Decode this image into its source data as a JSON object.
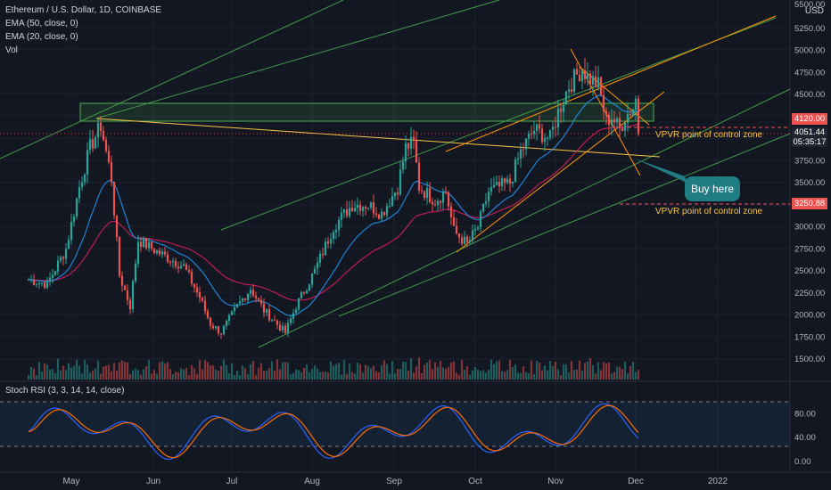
{
  "header": {
    "symbol_line": "Ethereum / U.S. Dollar, 1D, COINBASE",
    "ema50_label": "EMA (50, close, 0)",
    "ema20_label": "EMA (20, close, 0)",
    "vol_label": "Vol",
    "currency": "USD"
  },
  "annotations": {
    "buy_label": "Buy here",
    "vpvr_upper": "VPVR point of control zone",
    "vpvr_lower": "VPVR point of control zone"
  },
  "price_tags": {
    "top": "4120.00",
    "current": "4051.44",
    "countdown": "05:35:17",
    "lower": "3250.88"
  },
  "stoch": {
    "label": "Stoch RSI (3, 3, 14, 14, close)"
  },
  "chart_data": {
    "type": "candlestick",
    "price_axis_ticks": [
      "5500.00",
      "5250.00",
      "5000.00",
      "4750.00",
      "4500.00",
      "4250.00",
      "4000.00",
      "3750.00",
      "3500.00",
      "3250.00",
      "3000.00",
      "2750.00",
      "2500.00",
      "2250.00",
      "2000.00",
      "1750.00",
      "1500.00"
    ],
    "stoch_axis_ticks": [
      "80.00",
      "40.00",
      "0.00"
    ],
    "time_axis_ticks": [
      "May",
      "Jun",
      "Jul",
      "Aug",
      "Sep",
      "Oct",
      "Nov",
      "Dec",
      "2022"
    ],
    "close_series": [
      {
        "date": "2021-04-15",
        "close": 2400
      },
      {
        "date": "2021-04-22",
        "close": 2350
      },
      {
        "date": "2021-04-29",
        "close": 2750
      },
      {
        "date": "2021-05-04",
        "close": 3450
      },
      {
        "date": "2021-05-08",
        "close": 3900
      },
      {
        "date": "2021-05-12",
        "close": 4150
      },
      {
        "date": "2021-05-16",
        "close": 3550
      },
      {
        "date": "2021-05-19",
        "close": 2450
      },
      {
        "date": "2021-05-23",
        "close": 2100
      },
      {
        "date": "2021-05-26",
        "close": 2850
      },
      {
        "date": "2021-06-03",
        "close": 2700
      },
      {
        "date": "2021-06-12",
        "close": 2550
      },
      {
        "date": "2021-06-18",
        "close": 2200
      },
      {
        "date": "2021-06-22",
        "close": 1900
      },
      {
        "date": "2021-06-26",
        "close": 1800
      },
      {
        "date": "2021-07-02",
        "close": 2100
      },
      {
        "date": "2021-07-07",
        "close": 2300
      },
      {
        "date": "2021-07-12",
        "close": 2050
      },
      {
        "date": "2021-07-20",
        "close": 1800
      },
      {
        "date": "2021-07-24",
        "close": 2100
      },
      {
        "date": "2021-07-31",
        "close": 2500
      },
      {
        "date": "2021-08-07",
        "close": 3000
      },
      {
        "date": "2021-08-14",
        "close": 3250
      },
      {
        "date": "2021-08-20",
        "close": 3250
      },
      {
        "date": "2021-08-25",
        "close": 3150
      },
      {
        "date": "2021-08-31",
        "close": 3450
      },
      {
        "date": "2021-09-03",
        "close": 3900
      },
      {
        "date": "2021-09-06",
        "close": 3950
      },
      {
        "date": "2021-09-08",
        "close": 3450
      },
      {
        "date": "2021-09-14",
        "close": 3300
      },
      {
        "date": "2021-09-18",
        "close": 3400
      },
      {
        "date": "2021-09-21",
        "close": 2950
      },
      {
        "date": "2021-09-26",
        "close": 2800
      },
      {
        "date": "2021-09-30",
        "close": 3000
      },
      {
        "date": "2021-10-04",
        "close": 3400
      },
      {
        "date": "2021-10-12",
        "close": 3500
      },
      {
        "date": "2021-10-16",
        "close": 3850
      },
      {
        "date": "2021-10-21",
        "close": 4100
      },
      {
        "date": "2021-10-27",
        "close": 4000
      },
      {
        "date": "2021-10-30",
        "close": 4300
      },
      {
        "date": "2021-11-03",
        "close": 4600
      },
      {
        "date": "2021-11-08",
        "close": 4800
      },
      {
        "date": "2021-11-10",
        "close": 4700
      },
      {
        "date": "2021-11-14",
        "close": 4600
      },
      {
        "date": "2021-11-17",
        "close": 4200
      },
      {
        "date": "2021-11-19",
        "close": 4250
      },
      {
        "date": "2021-11-22",
        "close": 4100
      },
      {
        "date": "2021-11-24",
        "close": 4250
      },
      {
        "date": "2021-11-27",
        "close": 4350
      },
      {
        "date": "2021-11-28",
        "close": 4450
      },
      {
        "date": "2021-11-29",
        "close": 4051.44
      }
    ],
    "levels": [
      {
        "name": "VPVR point of control zone",
        "value": 4120.0
      },
      {
        "name": "VPVR point of control zone",
        "value": 3250.88
      }
    ],
    "annotation": "Buy here"
  }
}
